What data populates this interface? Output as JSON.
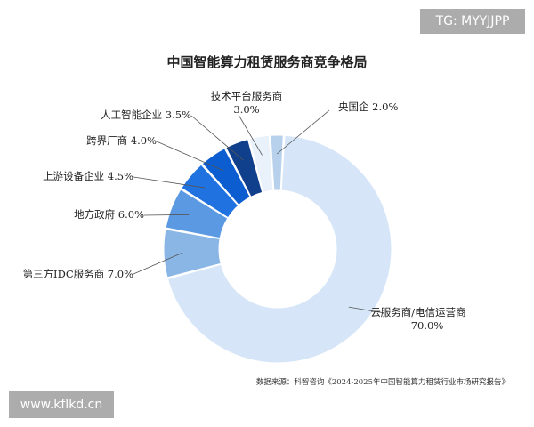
{
  "chart_data": {
    "type": "pie",
    "donut": true,
    "title": "中国智能算力租赁服务商竞争格局",
    "source": "数据来源：科智咨询《2024-2025年中国智能算力租赁行业市场研究报告》",
    "legend": "none",
    "slices": [
      {
        "name": "央国企",
        "value": 2.0,
        "value_label": "2.0%",
        "color": "#b7d1ec"
      },
      {
        "name": "云服务商/电信运营商",
        "value": 70.0,
        "value_label": "70.0%",
        "color": "#d6e6f8"
      },
      {
        "name": "第三方IDC服务商",
        "value": 7.0,
        "value_label": "7.0%",
        "color": "#8ab6e6"
      },
      {
        "name": "地方政府",
        "value": 6.0,
        "value_label": "6.0%",
        "color": "#5b99e2"
      },
      {
        "name": "上游设备企业",
        "value": 4.5,
        "value_label": "4.5%",
        "color": "#1f72e0"
      },
      {
        "name": "跨界厂商",
        "value": 4.0,
        "value_label": "4.0%",
        "color": "#0c5ed0"
      },
      {
        "name": "人工智能企业",
        "value": 3.5,
        "value_label": "3.5%",
        "color": "#103f8c"
      },
      {
        "name": "技术平台服务商",
        "value": 3.0,
        "value_label": "3.0%",
        "color": "#e9f1fb"
      }
    ]
  },
  "watermarks": {
    "top_right": "TG: MYYJJPP",
    "bottom_left": "www.kflkd.cn"
  }
}
